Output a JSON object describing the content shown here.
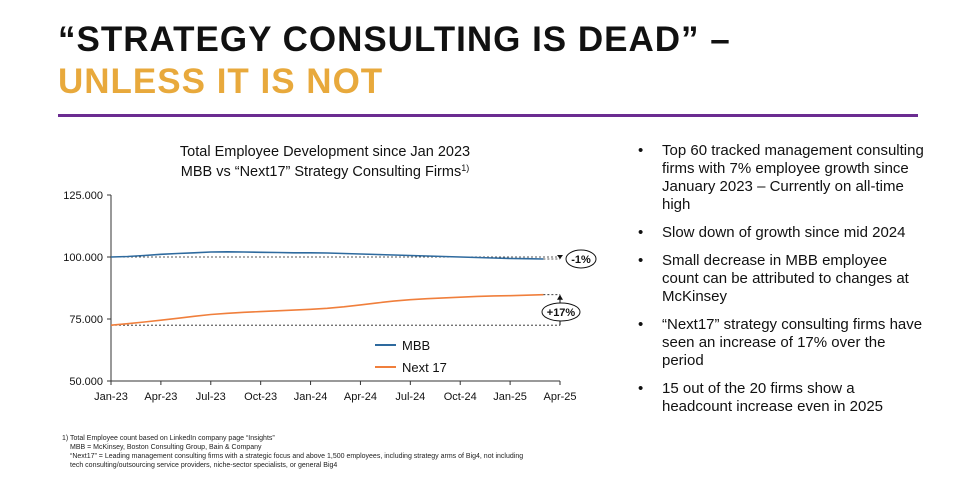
{
  "header": {
    "title_line1": "“STRATEGY CONSULTING IS DEAD” –",
    "title_line2": "UNLESS IT IS NOT",
    "title2_color": "#E8A93C",
    "rule_color": "#6B2C91"
  },
  "chart_data": {
    "type": "line",
    "title": "Total Employee Development since Jan 2023",
    "subtitle": "MBB vs “Next17” Strategy Consulting Firms",
    "subtitle_sup": "1)",
    "x_ticks": [
      "Jan-23",
      "Apr-23",
      "Jul-23",
      "Oct-23",
      "Jan-24",
      "Apr-24",
      "Jul-24",
      "Oct-24",
      "Jan-25",
      "Apr-25"
    ],
    "y_ticks": [
      "50.000",
      "75.000",
      "100.000",
      "125.000"
    ],
    "ylim": [
      50000,
      125000
    ],
    "xlim": [
      0,
      27
    ],
    "x_unit": "months since Jan-23",
    "series": [
      {
        "name": "MBB",
        "color": "#2E6A9E",
        "values": [
          100000,
          100200,
          100600,
          101100,
          101400,
          101700,
          102000,
          102100,
          102000,
          101900,
          101800,
          101700,
          101700,
          101600,
          101400,
          101200,
          101000,
          100800,
          100600,
          100400,
          100200,
          100000,
          99800,
          99600,
          99400,
          99300,
          99200
        ]
      },
      {
        "name": "Next 17",
        "color": "#F07F3C",
        "values": [
          72500,
          73100,
          73800,
          74500,
          75300,
          76100,
          76800,
          77300,
          77700,
          78000,
          78300,
          78600,
          78900,
          79300,
          79900,
          80700,
          81500,
          82200,
          82800,
          83200,
          83500,
          83800,
          84100,
          84300,
          84400,
          84600,
          84800
        ]
      }
    ],
    "annotations": [
      {
        "label": "-1%"
      },
      {
        "label": "+17%"
      }
    ],
    "legend_position": "inside-bottom-center",
    "grid": false
  },
  "bullets": [
    "Top 60 tracked management consulting firms with 7% employee growth since January 2023 – Currently on all-time high",
    "Slow down of growth since mid 2024",
    "Small decrease in MBB employee count can be attributed to changes at McKinsey",
    "“Next17” strategy consulting firms have seen an increase of 17% over the period",
    "15 out of the 20 firms show a headcount increase even in 2025"
  ],
  "footnotes": [
    "1) Total Employee count based on LinkedIn company page “Insights”",
    "MBB = McKinsey, Boston Consulting Group, Bain & Company",
    "“Next17” = Leading management consulting firms with a strategic focus and above 1,500 employees, including strategy arms of Big4, not including",
    "tech consulting/outsourcing service providers, niche-sector specialists, or general Big4"
  ]
}
